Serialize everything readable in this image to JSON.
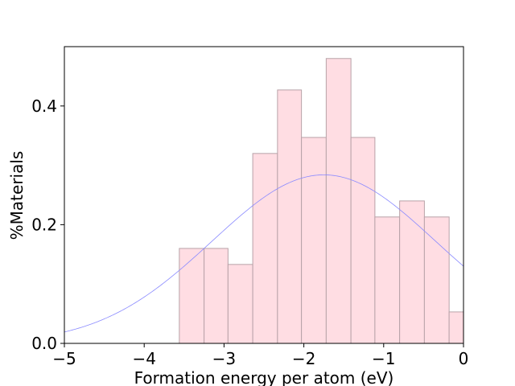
{
  "chart_data": {
    "type": "bar",
    "title": "",
    "xlabel": "Formation energy per atom (eV)",
    "ylabel": "%Materials",
    "xlim": [
      -5,
      0
    ],
    "ylim": [
      0,
      0.5
    ],
    "x_ticks": [
      -5,
      -4,
      -3,
      -2,
      -1,
      0
    ],
    "x_tick_labels": [
      "−5",
      "−4",
      "−3",
      "−2",
      "−1",
      "0"
    ],
    "y_ticks": [
      0.0,
      0.2,
      0.4
    ],
    "y_tick_labels": [
      "0.0",
      "0.2",
      "0.4"
    ],
    "bins": [
      {
        "x0": -3.56,
        "x1": -3.25,
        "value": 0.16
      },
      {
        "x0": -3.25,
        "x1": -2.95,
        "value": 0.16
      },
      {
        "x0": -2.95,
        "x1": -2.64,
        "value": 0.133
      },
      {
        "x0": -2.64,
        "x1": -2.33,
        "value": 0.32
      },
      {
        "x0": -2.33,
        "x1": -2.03,
        "value": 0.427
      },
      {
        "x0": -2.03,
        "x1": -1.72,
        "value": 0.347
      },
      {
        "x0": -1.72,
        "x1": -1.41,
        "value": 0.48
      },
      {
        "x0": -1.41,
        "x1": -1.11,
        "value": 0.347
      },
      {
        "x0": -1.11,
        "x1": -0.8,
        "value": 0.213
      },
      {
        "x0": -0.8,
        "x1": -0.49,
        "value": 0.24
      },
      {
        "x0": -0.49,
        "x1": -0.18,
        "value": 0.213
      },
      {
        "x0": -0.18,
        "x1": 0.0,
        "value": 0.053
      }
    ],
    "fit_curve": {
      "type": "normal",
      "mean": -1.75,
      "std": 1.4,
      "peak": 0.284
    },
    "colors": {
      "bar_fill": "#ffdde3",
      "bar_edge": "#b8a2a8",
      "curve": "#8a8aff",
      "axis": "#000000"
    },
    "grid": false
  }
}
